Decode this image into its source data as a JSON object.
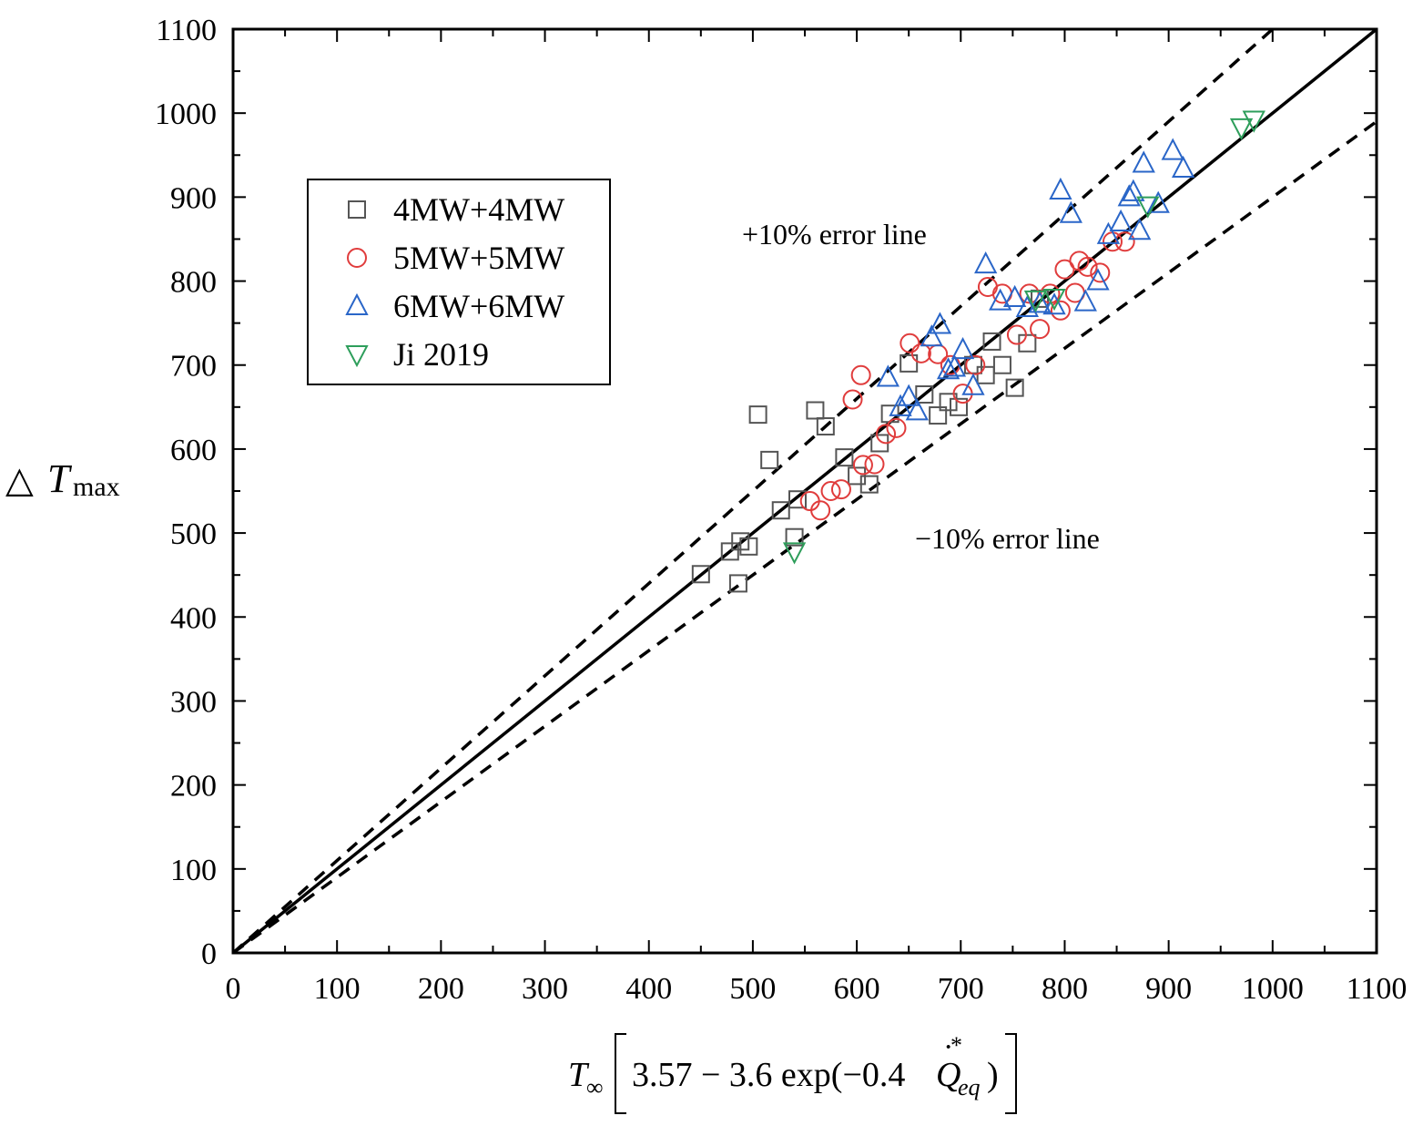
{
  "chart_data": {
    "type": "scatter",
    "title": "",
    "xlabel": {
      "T": "T",
      "inf": "∞",
      "expr": "3.57 − 3.6 exp(−0.4",
      "Q": "Q",
      "dot": "·",
      "star": "*",
      "sub": "eq",
      "close": ")"
    },
    "ylabel": {
      "delta": "△",
      "T": "T",
      "sub": "max"
    },
    "xlim": [
      0,
      1100
    ],
    "ylim": [
      0,
      1100
    ],
    "xticks": [
      "0",
      "100",
      "200",
      "300",
      "400",
      "500",
      "600",
      "700",
      "800",
      "900",
      "1000",
      "1100"
    ],
    "yticks": [
      "0",
      "100",
      "200",
      "300",
      "400",
      "500",
      "600",
      "700",
      "800",
      "900",
      "1000",
      "1100"
    ],
    "grid": false,
    "legend_position": "upper-left",
    "reference_lines": [
      {
        "name": "y = x",
        "style": "solid",
        "slope": 1.0
      },
      {
        "name": "+10% error line",
        "style": "dashed",
        "slope": 1.1
      },
      {
        "name": "−10% error line",
        "style": "dashed",
        "slope": 0.9
      }
    ],
    "annotations": {
      "plus": "+10% error line",
      "minus": "−10% error line"
    },
    "series": [
      {
        "name": "4MW+4MW",
        "marker": "square",
        "color": "#555555",
        "points": [
          [
            450,
            451
          ],
          [
            478,
            478
          ],
          [
            486,
            440
          ],
          [
            488,
            490
          ],
          [
            496,
            484
          ],
          [
            505,
            641
          ],
          [
            516,
            587
          ],
          [
            527,
            527
          ],
          [
            540,
            495
          ],
          [
            543,
            540
          ],
          [
            560,
            646
          ],
          [
            570,
            627
          ],
          [
            588,
            590
          ],
          [
            600,
            568
          ],
          [
            612,
            558
          ],
          [
            622,
            607
          ],
          [
            632,
            642
          ],
          [
            650,
            702
          ],
          [
            665,
            665
          ],
          [
            678,
            640
          ],
          [
            688,
            656
          ],
          [
            698,
            650
          ],
          [
            712,
            700
          ],
          [
            724,
            688
          ],
          [
            730,
            728
          ],
          [
            740,
            700
          ],
          [
            752,
            673
          ],
          [
            764,
            726
          ],
          [
            776,
            779
          ]
        ]
      },
      {
        "name": "5MW+5MW",
        "marker": "circle",
        "color": "#e03c3c",
        "points": [
          [
            555,
            538
          ],
          [
            565,
            527
          ],
          [
            575,
            550
          ],
          [
            585,
            552
          ],
          [
            596,
            659
          ],
          [
            604,
            688
          ],
          [
            606,
            581
          ],
          [
            617,
            582
          ],
          [
            628,
            618
          ],
          [
            638,
            625
          ],
          [
            651,
            726
          ],
          [
            662,
            714
          ],
          [
            678,
            713
          ],
          [
            690,
            700
          ],
          [
            702,
            666
          ],
          [
            714,
            700
          ],
          [
            726,
            793
          ],
          [
            740,
            785
          ],
          [
            754,
            736
          ],
          [
            766,
            785
          ],
          [
            776,
            743
          ],
          [
            786,
            785
          ],
          [
            796,
            765
          ],
          [
            800,
            814
          ],
          [
            810,
            786
          ],
          [
            814,
            824
          ],
          [
            822,
            817
          ],
          [
            834,
            810
          ],
          [
            846,
            847
          ],
          [
            858,
            847
          ]
        ]
      },
      {
        "name": "6MW+6MW",
        "marker": "triangle-up",
        "color": "#2a66c8",
        "points": [
          [
            630,
            685
          ],
          [
            642,
            650
          ],
          [
            650,
            662
          ],
          [
            658,
            645
          ],
          [
            672,
            733
          ],
          [
            680,
            748
          ],
          [
            688,
            694
          ],
          [
            694,
            697
          ],
          [
            702,
            718
          ],
          [
            712,
            675
          ],
          [
            724,
            820
          ],
          [
            738,
            776
          ],
          [
            752,
            780
          ],
          [
            764,
            768
          ],
          [
            776,
            773
          ],
          [
            790,
            771
          ],
          [
            796,
            908
          ],
          [
            806,
            880
          ],
          [
            820,
            775
          ],
          [
            832,
            800
          ],
          [
            842,
            855
          ],
          [
            854,
            870
          ],
          [
            862,
            900
          ],
          [
            866,
            906
          ],
          [
            872,
            860
          ],
          [
            876,
            940
          ],
          [
            890,
            892
          ],
          [
            904,
            955
          ],
          [
            914,
            934
          ]
        ]
      },
      {
        "name": "Ji 2019",
        "marker": "triangle-down",
        "color": "#2e9e5b",
        "points": [
          [
            540,
            478
          ],
          [
            772,
            778
          ],
          [
            790,
            780
          ],
          [
            880,
            890
          ],
          [
            970,
            983
          ],
          [
            982,
            992
          ]
        ]
      }
    ]
  }
}
